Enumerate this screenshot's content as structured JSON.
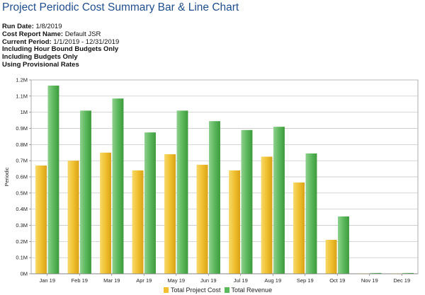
{
  "title": "Project Periodic Cost Summary Bar & Line Chart",
  "meta": {
    "run_date_label": "Run Date:",
    "run_date_value": "1/8/2019",
    "cost_report_label": "Cost Report Name:",
    "cost_report_value": "Default JSR",
    "current_period_label": "Current Period:",
    "current_period_value": "1/1/2019 - 12/31/2019",
    "line1": "Including Hour Bound Budgets Only",
    "line2": "Including Budgets Only",
    "line3": "Using Provisional Rates"
  },
  "colors": {
    "cost": "#f0c030",
    "revenue": "#5cb85c",
    "grid": "#bfbfbf",
    "plot_bg": "#ffffff"
  },
  "chart_data": {
    "type": "bar",
    "title": "",
    "xlabel": "",
    "ylabel": "Periodic",
    "ylim": [
      0,
      1200000
    ],
    "yticks": [
      0,
      100000,
      200000,
      300000,
      400000,
      500000,
      600000,
      700000,
      800000,
      900000,
      1000000,
      1100000,
      1200000
    ],
    "ytick_labels": [
      "0M",
      "0.1M",
      "0.2M",
      "0.3M",
      "0.4M",
      "0.5M",
      "0.6M",
      "0.7M",
      "0.8M",
      "0.9M",
      "1M",
      "1.1M",
      "1.2M"
    ],
    "categories": [
      "Jan 19",
      "Feb 19",
      "Mar 19",
      "Apr 19",
      "May 19",
      "Jun 19",
      "Jul 19",
      "Aug 19",
      "Sep 19",
      "Oct 19",
      "Nov 19",
      "Dec 19"
    ],
    "series": [
      {
        "name": "Total Project Cost",
        "values": [
          670000,
          700000,
          750000,
          640000,
          740000,
          675000,
          640000,
          725000,
          565000,
          210000,
          2000,
          2000
        ]
      },
      {
        "name": "Total Revenue",
        "values": [
          1165000,
          1010000,
          1085000,
          875000,
          1010000,
          945000,
          890000,
          910000,
          745000,
          355000,
          5000,
          5000
        ]
      }
    ],
    "grid": true,
    "legend_position": "bottom-center"
  }
}
